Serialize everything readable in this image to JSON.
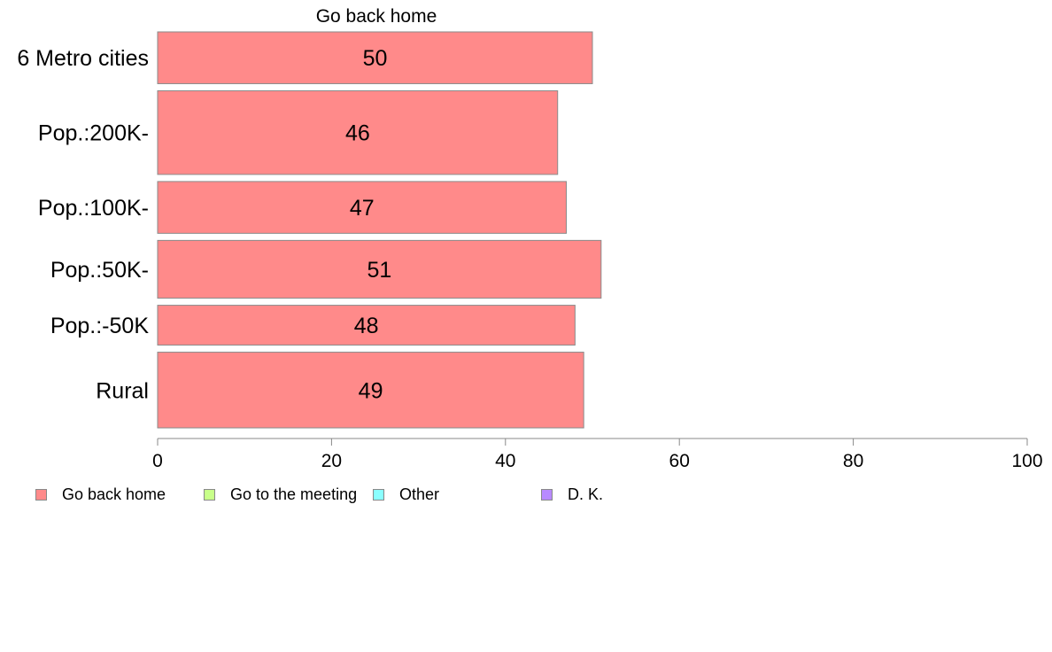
{
  "chart_data": {
    "type": "bar",
    "orientation": "horizontal",
    "title": "Go back home",
    "categories": [
      "6 Metro cities",
      "Pop.:200K-",
      "Pop.:100K-",
      "Pop.:50K-",
      "Pop.:-50K",
      "Rural"
    ],
    "category_weights": [
      0.13,
      0.21,
      0.13,
      0.145,
      0.1,
      0.19
    ],
    "series": [
      {
        "name": "Go back home",
        "color": "#ff8a8a",
        "values": [
          50,
          46,
          47,
          51,
          48,
          49
        ]
      }
    ],
    "xlim": [
      0,
      100
    ],
    "xticks": [
      0,
      20,
      40,
      60,
      80,
      100
    ],
    "grid": false,
    "legend_position": "bottom-left",
    "legend": [
      {
        "label": "Go back home",
        "color": "#ff8a8a"
      },
      {
        "label": "Go to the meeting",
        "color": "#c8ff8a"
      },
      {
        "label": "Other",
        "color": "#8affff"
      },
      {
        "label": "D. K.",
        "color": "#b88aff"
      }
    ]
  }
}
